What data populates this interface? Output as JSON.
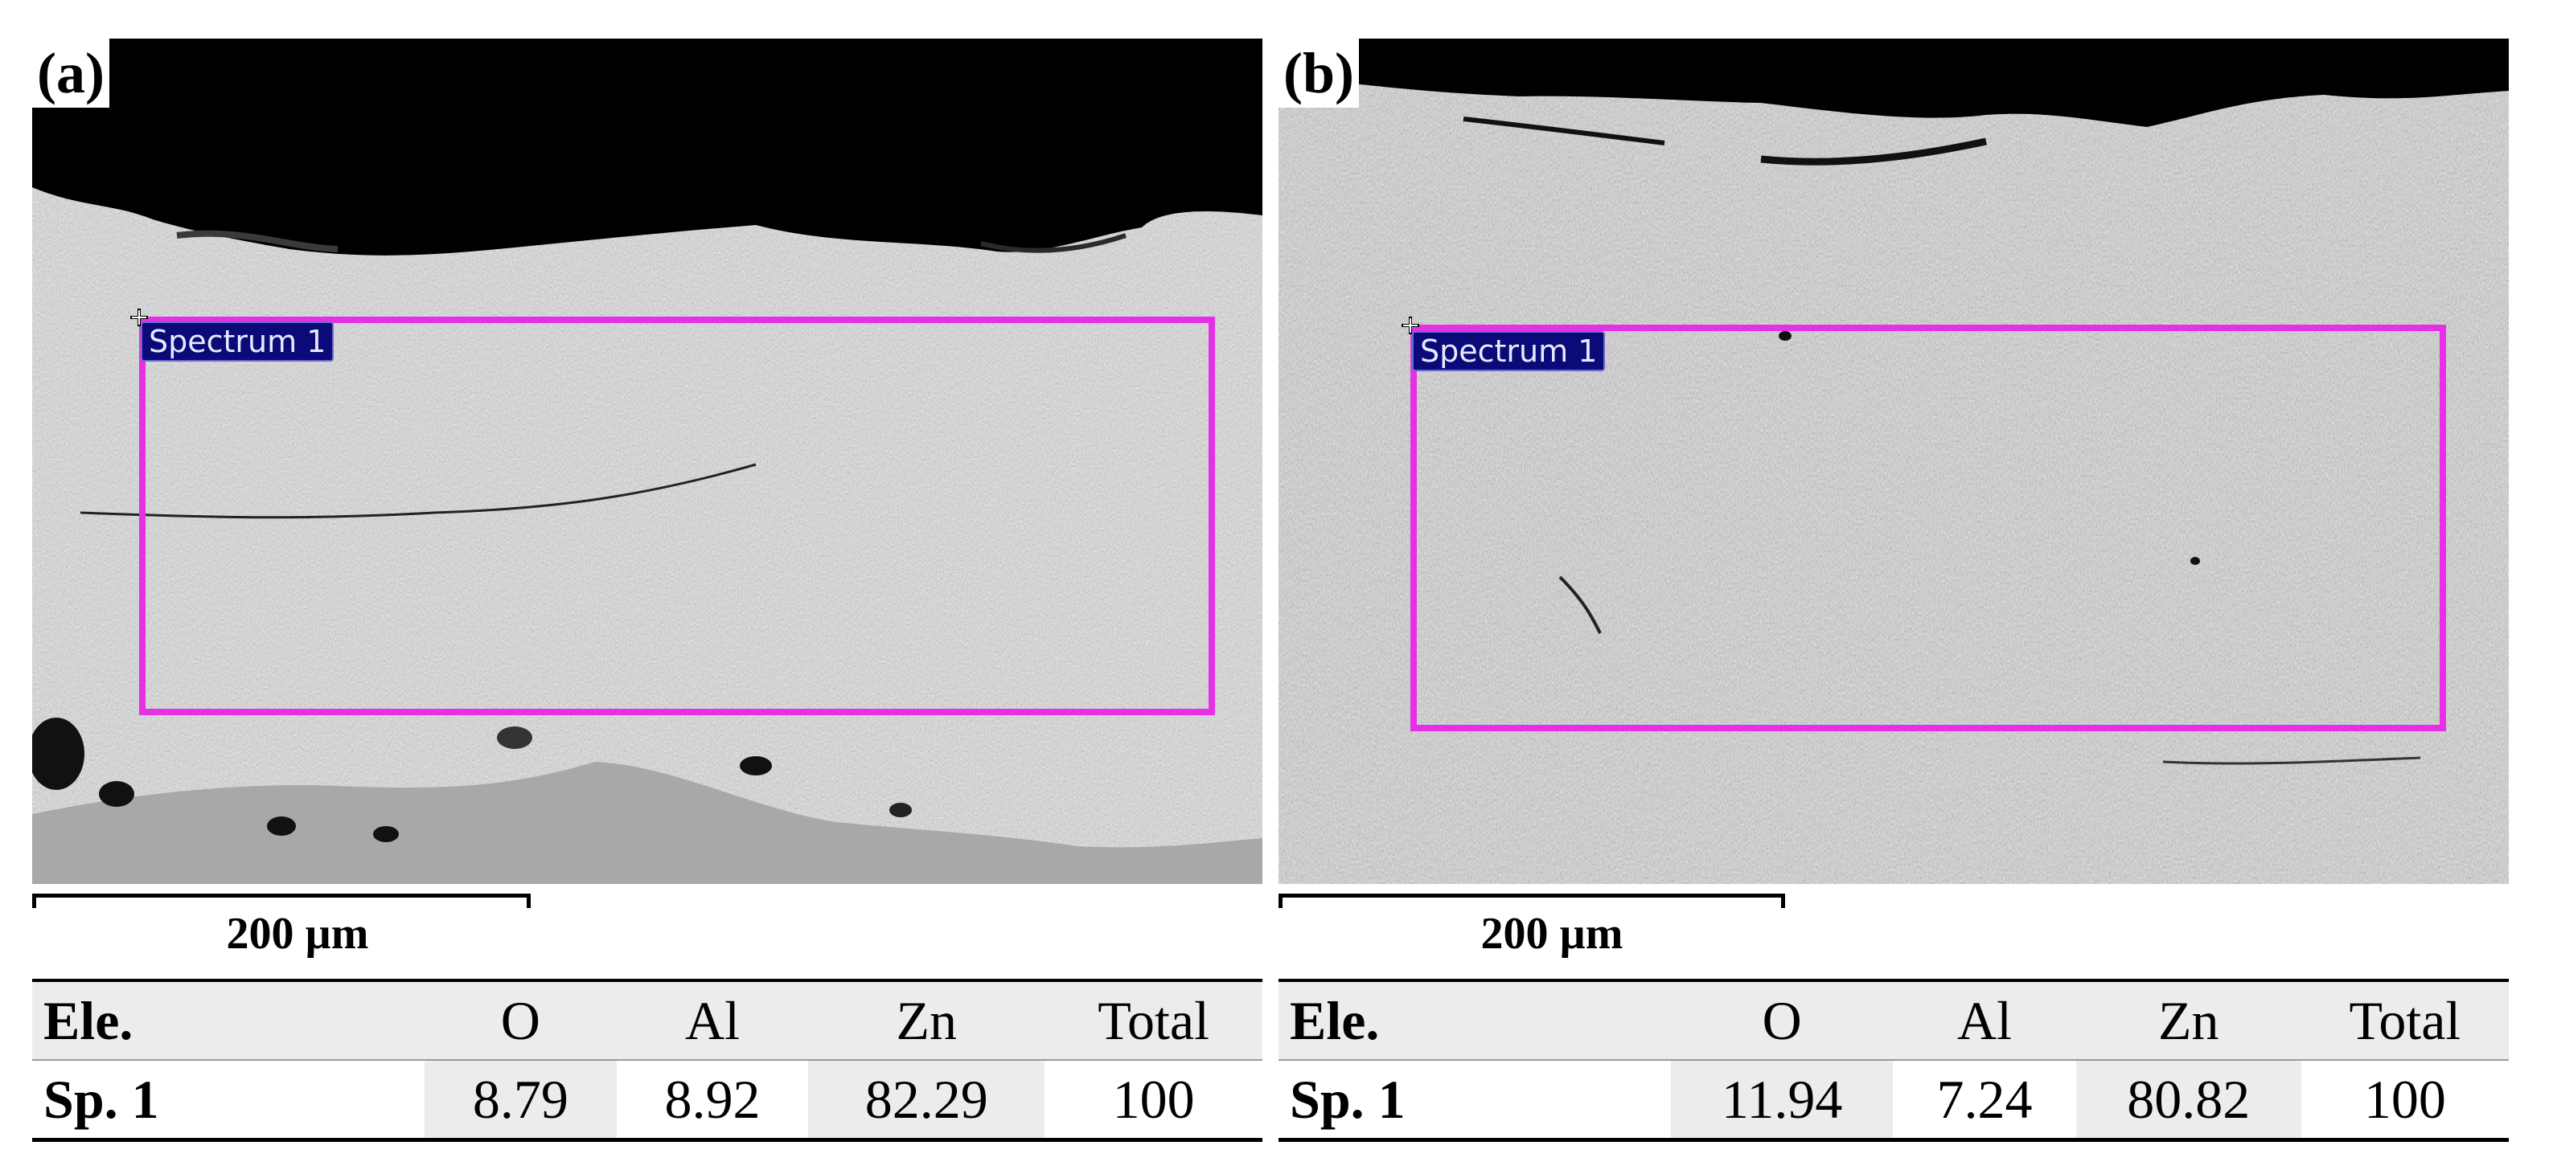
{
  "panels": [
    {
      "label": "(a)",
      "roi_label": "Spectrum 1",
      "scale_label": "200 µm",
      "table": {
        "headers": [
          "Ele.",
          "O",
          "Al",
          "Zn",
          "Total"
        ],
        "row": [
          "Sp. 1",
          "8.79",
          "8.92",
          "82.29",
          "100"
        ]
      }
    },
    {
      "label": "(b)",
      "roi_label": "Spectrum 1",
      "scale_label": "200 µm",
      "table": {
        "headers": [
          "Ele.",
          "O",
          "Al",
          "Zn",
          "Total"
        ],
        "row": [
          "Sp. 1",
          "11.94",
          "7.24",
          "80.82",
          "100"
        ]
      }
    }
  ],
  "colors": {
    "roi_outline": "#e530e5",
    "roi_tag_bg": "#0a0a78",
    "table_shade": "#ececec"
  }
}
